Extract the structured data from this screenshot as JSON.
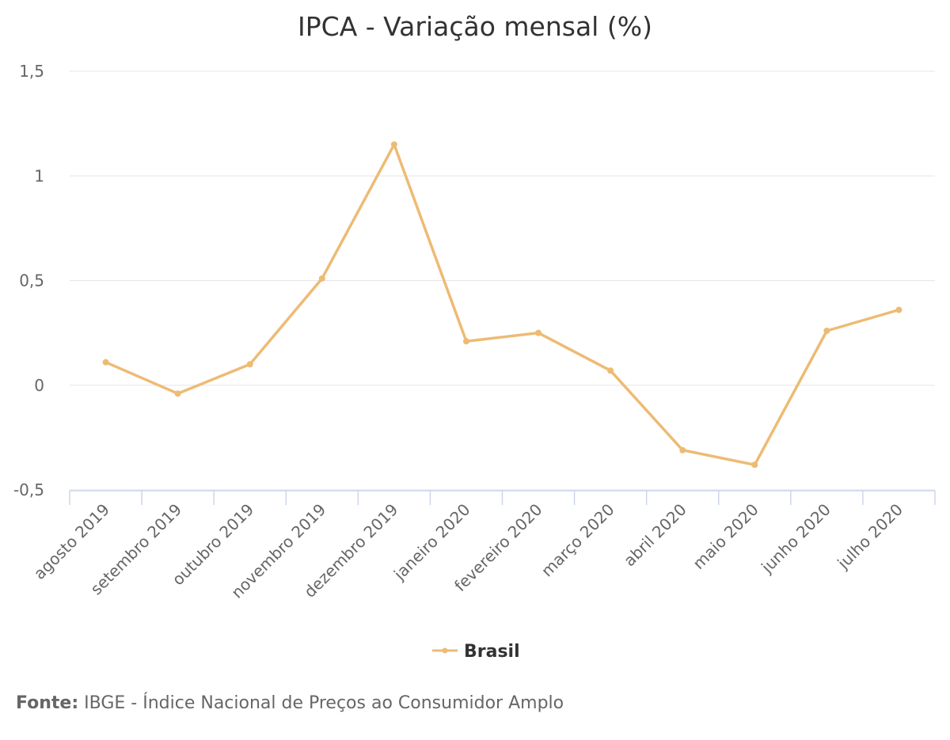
{
  "chart_data": {
    "type": "line",
    "title": "IPCA - Variação mensal (%)",
    "categories": [
      "agosto 2019",
      "setembro 2019",
      "outubro 2019",
      "novembro 2019",
      "dezembro 2019",
      "janeiro 2020",
      "fevereiro 2020",
      "março 2020",
      "abril 2020",
      "maio 2020",
      "junho 2020",
      "julho 2020"
    ],
    "series": [
      {
        "name": "Brasil",
        "values": [
          0.11,
          -0.04,
          0.1,
          0.51,
          1.15,
          0.21,
          0.25,
          0.07,
          -0.31,
          -0.38,
          0.26,
          0.36
        ],
        "color": "#EDBB74"
      }
    ],
    "ylim": [
      -0.5,
      1.5
    ],
    "yticks": [
      -0.5,
      0,
      0.5,
      1,
      1.5
    ],
    "ytick_labels": [
      "-0,5",
      "0",
      "0,5",
      "1",
      "1,5"
    ],
    "grid": true,
    "legend_position": "bottom-center",
    "xlabel": "",
    "ylabel": ""
  },
  "source": {
    "label": "Fonte:",
    "text": "IBGE - Índice Nacional de Preços ao Consumidor Amplo"
  },
  "colors": {
    "grid": "#E6E6E6",
    "axis": "#CCD6EB",
    "text": "#666666",
    "title": "#333333"
  }
}
